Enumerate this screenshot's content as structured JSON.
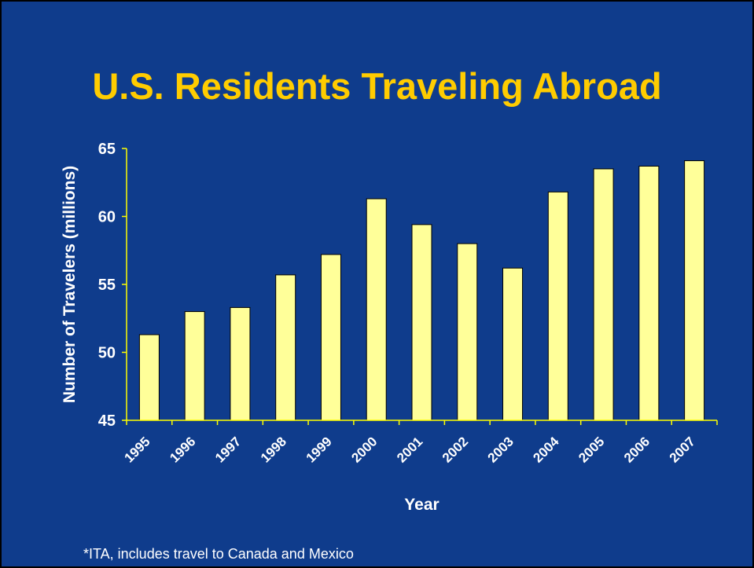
{
  "slide": {
    "title": "U.S. Residents Traveling Abroad",
    "footnote": "*ITA, includes travel to Canada and Mexico",
    "background_color": "#0F3C8C",
    "title_color": "#FFCC00"
  },
  "chart_data": {
    "type": "bar",
    "title": "U.S. Residents Traveling Abroad",
    "xlabel": "Year",
    "ylabel": "Number of Travelers (millions)",
    "categories": [
      "1995",
      "1996",
      "1997",
      "1998",
      "1999",
      "2000",
      "2001",
      "2002",
      "2003",
      "2004",
      "2005",
      "2006",
      "2007"
    ],
    "values": [
      51.3,
      53.0,
      53.3,
      55.7,
      57.2,
      61.3,
      59.4,
      58.0,
      56.2,
      61.8,
      63.5,
      63.7,
      64.1
    ],
    "ylim": [
      45,
      65
    ],
    "yticks": [
      45,
      50,
      55,
      60,
      65
    ],
    "grid": false,
    "legend": "none",
    "bar_color": "#FFFF99",
    "bar_edge_color": "#000000",
    "axis_color": "#FFFF00"
  }
}
